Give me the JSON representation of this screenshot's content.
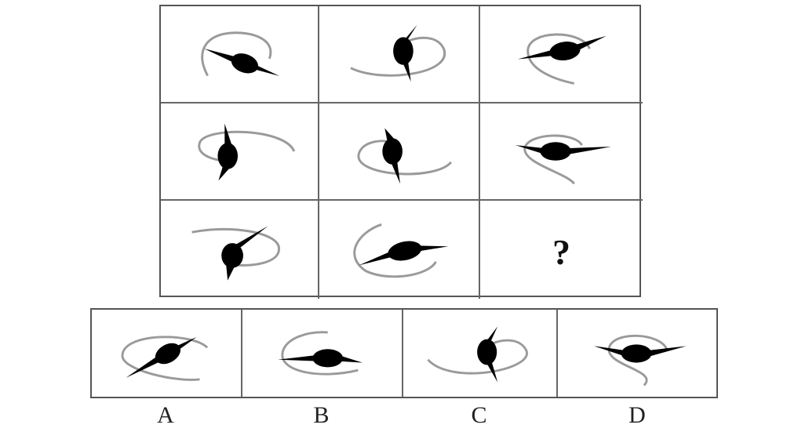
{
  "grid": {
    "question_mark": "?"
  },
  "options": {
    "labels": [
      "A",
      "B",
      "C",
      "D"
    ]
  },
  "colors": {
    "figure_fill": "#000000",
    "arc_stroke": "#9a9a9a",
    "cell_border": "#555555"
  }
}
